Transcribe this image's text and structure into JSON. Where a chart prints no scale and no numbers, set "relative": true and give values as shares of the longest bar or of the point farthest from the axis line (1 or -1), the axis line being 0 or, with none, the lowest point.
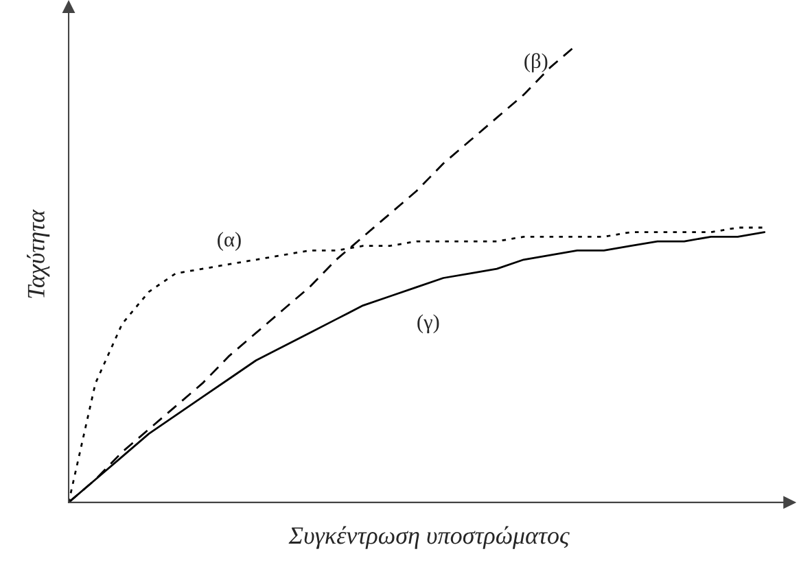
{
  "chart_data": {
    "type": "line",
    "relative": true,
    "xlabel": "Συγκέντρωση υποστρώματος",
    "ylabel": "Ταχύτητα",
    "legend": false,
    "marker": "none",
    "categories": [
      null,
      null,
      null,
      null,
      null,
      null,
      null,
      null,
      null,
      null,
      null,
      null,
      null,
      null,
      null,
      null,
      null,
      null,
      null,
      null,
      null,
      null,
      null,
      null,
      null,
      null,
      null
    ],
    "series": [
      {
        "name": "(α)",
        "color": "#000000",
        "line_style": "dotted",
        "values": [
          0,
          0.26,
          0.39,
          0.46,
          0.5,
          0.51,
          0.52,
          0.53,
          0.54,
          0.55,
          0.55,
          0.56,
          0.56,
          0.57,
          0.57,
          0.57,
          0.57,
          0.58,
          0.58,
          0.58,
          0.58,
          0.59,
          0.59,
          0.59,
          0.59,
          0.6,
          0.6
        ]
      },
      {
        "name": "(β)",
        "color": "#000000",
        "line_style": "dashed",
        "values": [
          0,
          0.05,
          0.11,
          0.16,
          0.21,
          0.26,
          0.32,
          0.37,
          0.42,
          0.47,
          0.53,
          0.58,
          0.63,
          0.68,
          0.74,
          0.79,
          0.84,
          0.89,
          0.95,
          1.0,
          null,
          null,
          null,
          null,
          null,
          null,
          null
        ]
      },
      {
        "name": "(γ)",
        "color": "#000000",
        "line_style": "solid",
        "values": [
          0,
          0.05,
          0.1,
          0.15,
          0.19,
          0.23,
          0.27,
          0.31,
          0.34,
          0.37,
          0.4,
          0.43,
          0.45,
          0.47,
          0.49,
          0.5,
          0.51,
          0.53,
          0.54,
          0.55,
          0.55,
          0.56,
          0.57,
          0.57,
          0.58,
          0.58,
          0.59
        ]
      }
    ]
  }
}
